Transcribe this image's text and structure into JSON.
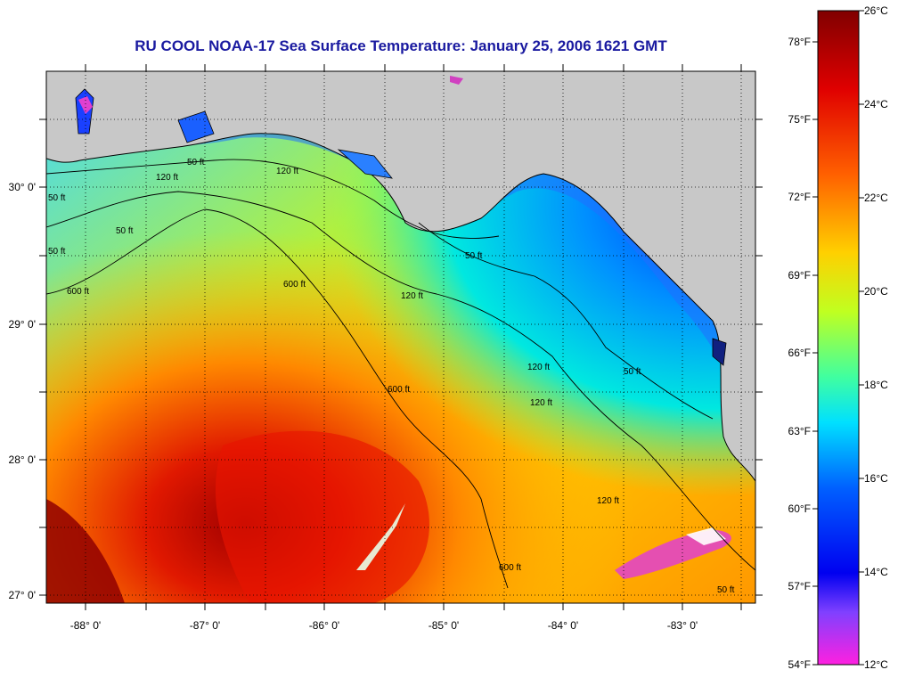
{
  "title": "RU COOL  NOAA-17  Sea Surface Temperature:  January 25, 2006 1621 GMT",
  "map": {
    "lon_ticks": [
      "-88° 0'",
      "-87° 0'",
      "-86° 0'",
      "-85° 0'",
      "-84° 0'",
      "-83° 0'"
    ],
    "lat_ticks": [
      "30° 0'",
      "29° 0'",
      "28° 0'",
      "27° 0'"
    ],
    "contour_labels": [
      "50 ft",
      "120 ft",
      "600 ft",
      "120 ft",
      "50 ft",
      "120 ft",
      "600 ft",
      "120 ft",
      "600 ft",
      "600 ft",
      "120 ft",
      "50 ft",
      "50 ft",
      "50 ft",
      "120 ft",
      "50 ft",
      "50 ft"
    ],
    "colors": {
      "land": "#c8c8c8",
      "coast": "#000000"
    }
  },
  "colorbar": {
    "celsius_labels": [
      "26°C",
      "24°C",
      "22°C",
      "20°C",
      "18°C",
      "16°C",
      "14°C",
      "12°C"
    ],
    "fahrenheit_labels": [
      "78°F",
      "75°F",
      "72°F",
      "69°F",
      "66°F",
      "63°F",
      "60°F",
      "57°F",
      "54°F"
    ],
    "stops": [
      "#800000",
      "#ff0000",
      "#ff8c00",
      "#ffff00",
      "#80ff40",
      "#00ffff",
      "#0080ff",
      "#0000ff",
      "#9040ff",
      "#ff00ff"
    ]
  }
}
